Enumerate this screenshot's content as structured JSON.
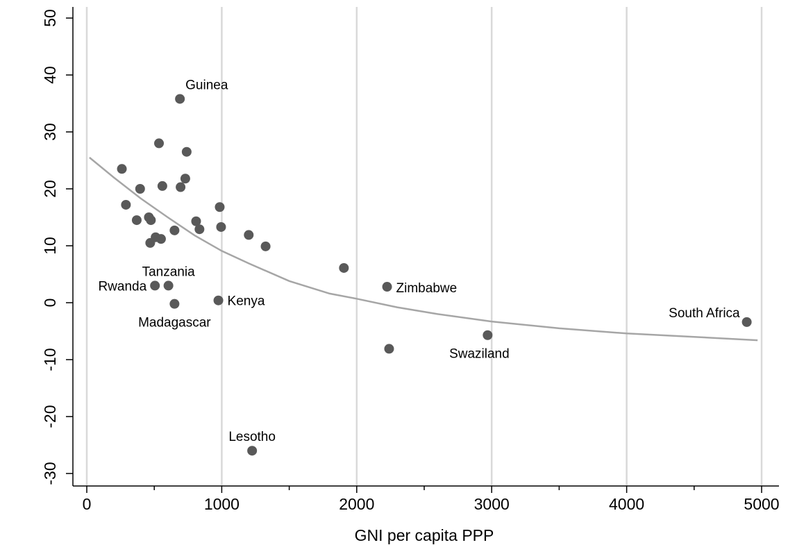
{
  "chart_data": {
    "type": "scatter",
    "title": "",
    "xlabel": "GNI per capita PPP",
    "ylabel": "",
    "xlim": [
      0,
      5000
    ],
    "ylim": [
      -30,
      50
    ],
    "x_ticks": [
      0,
      1000,
      2000,
      3000,
      4000,
      5000
    ],
    "x_minor_ticks": [
      500,
      1500,
      2500,
      3500,
      4500
    ],
    "y_ticks": [
      -30,
      -20,
      -10,
      0,
      10,
      20,
      30,
      40,
      50
    ],
    "grid": "vertical",
    "colors": {
      "points": "#595959",
      "fit_line": "#a6a6a6",
      "grid": "#d9d9d9",
      "axis": "#000000"
    },
    "points": [
      {
        "x": 260,
        "y": 23.5,
        "label": ""
      },
      {
        "x": 290,
        "y": 17.2,
        "label": ""
      },
      {
        "x": 370,
        "y": 14.5,
        "label": ""
      },
      {
        "x": 395,
        "y": 20.0,
        "label": ""
      },
      {
        "x": 460,
        "y": 15.0,
        "label": ""
      },
      {
        "x": 475,
        "y": 14.5,
        "label": ""
      },
      {
        "x": 470,
        "y": 10.5,
        "label": ""
      },
      {
        "x": 510,
        "y": 11.5,
        "label": ""
      },
      {
        "x": 535,
        "y": 28.0,
        "label": ""
      },
      {
        "x": 560,
        "y": 20.5,
        "label": ""
      },
      {
        "x": 550,
        "y": 11.2,
        "label": ""
      },
      {
        "x": 650,
        "y": 12.7,
        "label": ""
      },
      {
        "x": 690,
        "y": 35.8,
        "label": "Guinea"
      },
      {
        "x": 695,
        "y": 20.3,
        "label": ""
      },
      {
        "x": 730,
        "y": 21.8,
        "label": ""
      },
      {
        "x": 740,
        "y": 26.5,
        "label": ""
      },
      {
        "x": 810,
        "y": 14.3,
        "label": ""
      },
      {
        "x": 835,
        "y": 12.9,
        "label": ""
      },
      {
        "x": 985,
        "y": 16.8,
        "label": ""
      },
      {
        "x": 995,
        "y": 13.3,
        "label": ""
      },
      {
        "x": 1200,
        "y": 11.9,
        "label": ""
      },
      {
        "x": 1325,
        "y": 9.9,
        "label": ""
      },
      {
        "x": 505,
        "y": 3.0,
        "label": "Rwanda"
      },
      {
        "x": 605,
        "y": 3.0,
        "label": "Tanzania"
      },
      {
        "x": 650,
        "y": -0.2,
        "label": "Madagascar"
      },
      {
        "x": 975,
        "y": 0.4,
        "label": "Kenya"
      },
      {
        "x": 1905,
        "y": 6.1,
        "label": ""
      },
      {
        "x": 2225,
        "y": 2.8,
        "label": "Zimbabwe"
      },
      {
        "x": 2240,
        "y": -8.1,
        "label": ""
      },
      {
        "x": 2970,
        "y": -5.7,
        "label": "Swaziland"
      },
      {
        "x": 4890,
        "y": -3.4,
        "label": "South Africa"
      },
      {
        "x": 1225,
        "y": -26.0,
        "label": "Lesotho"
      }
    ],
    "fit_curve": {
      "x": [
        20,
        200,
        400,
        600,
        800,
        1000,
        1200,
        1500,
        1800,
        2000,
        2300,
        2600,
        3000,
        3500,
        4000,
        4500,
        4970
      ],
      "y": [
        25.5,
        22.0,
        18.3,
        15.0,
        11.8,
        9.1,
        6.9,
        3.8,
        1.6,
        0.7,
        -0.8,
        -2.0,
        -3.3,
        -4.5,
        -5.4,
        -6.0,
        -6.6
      ]
    }
  }
}
